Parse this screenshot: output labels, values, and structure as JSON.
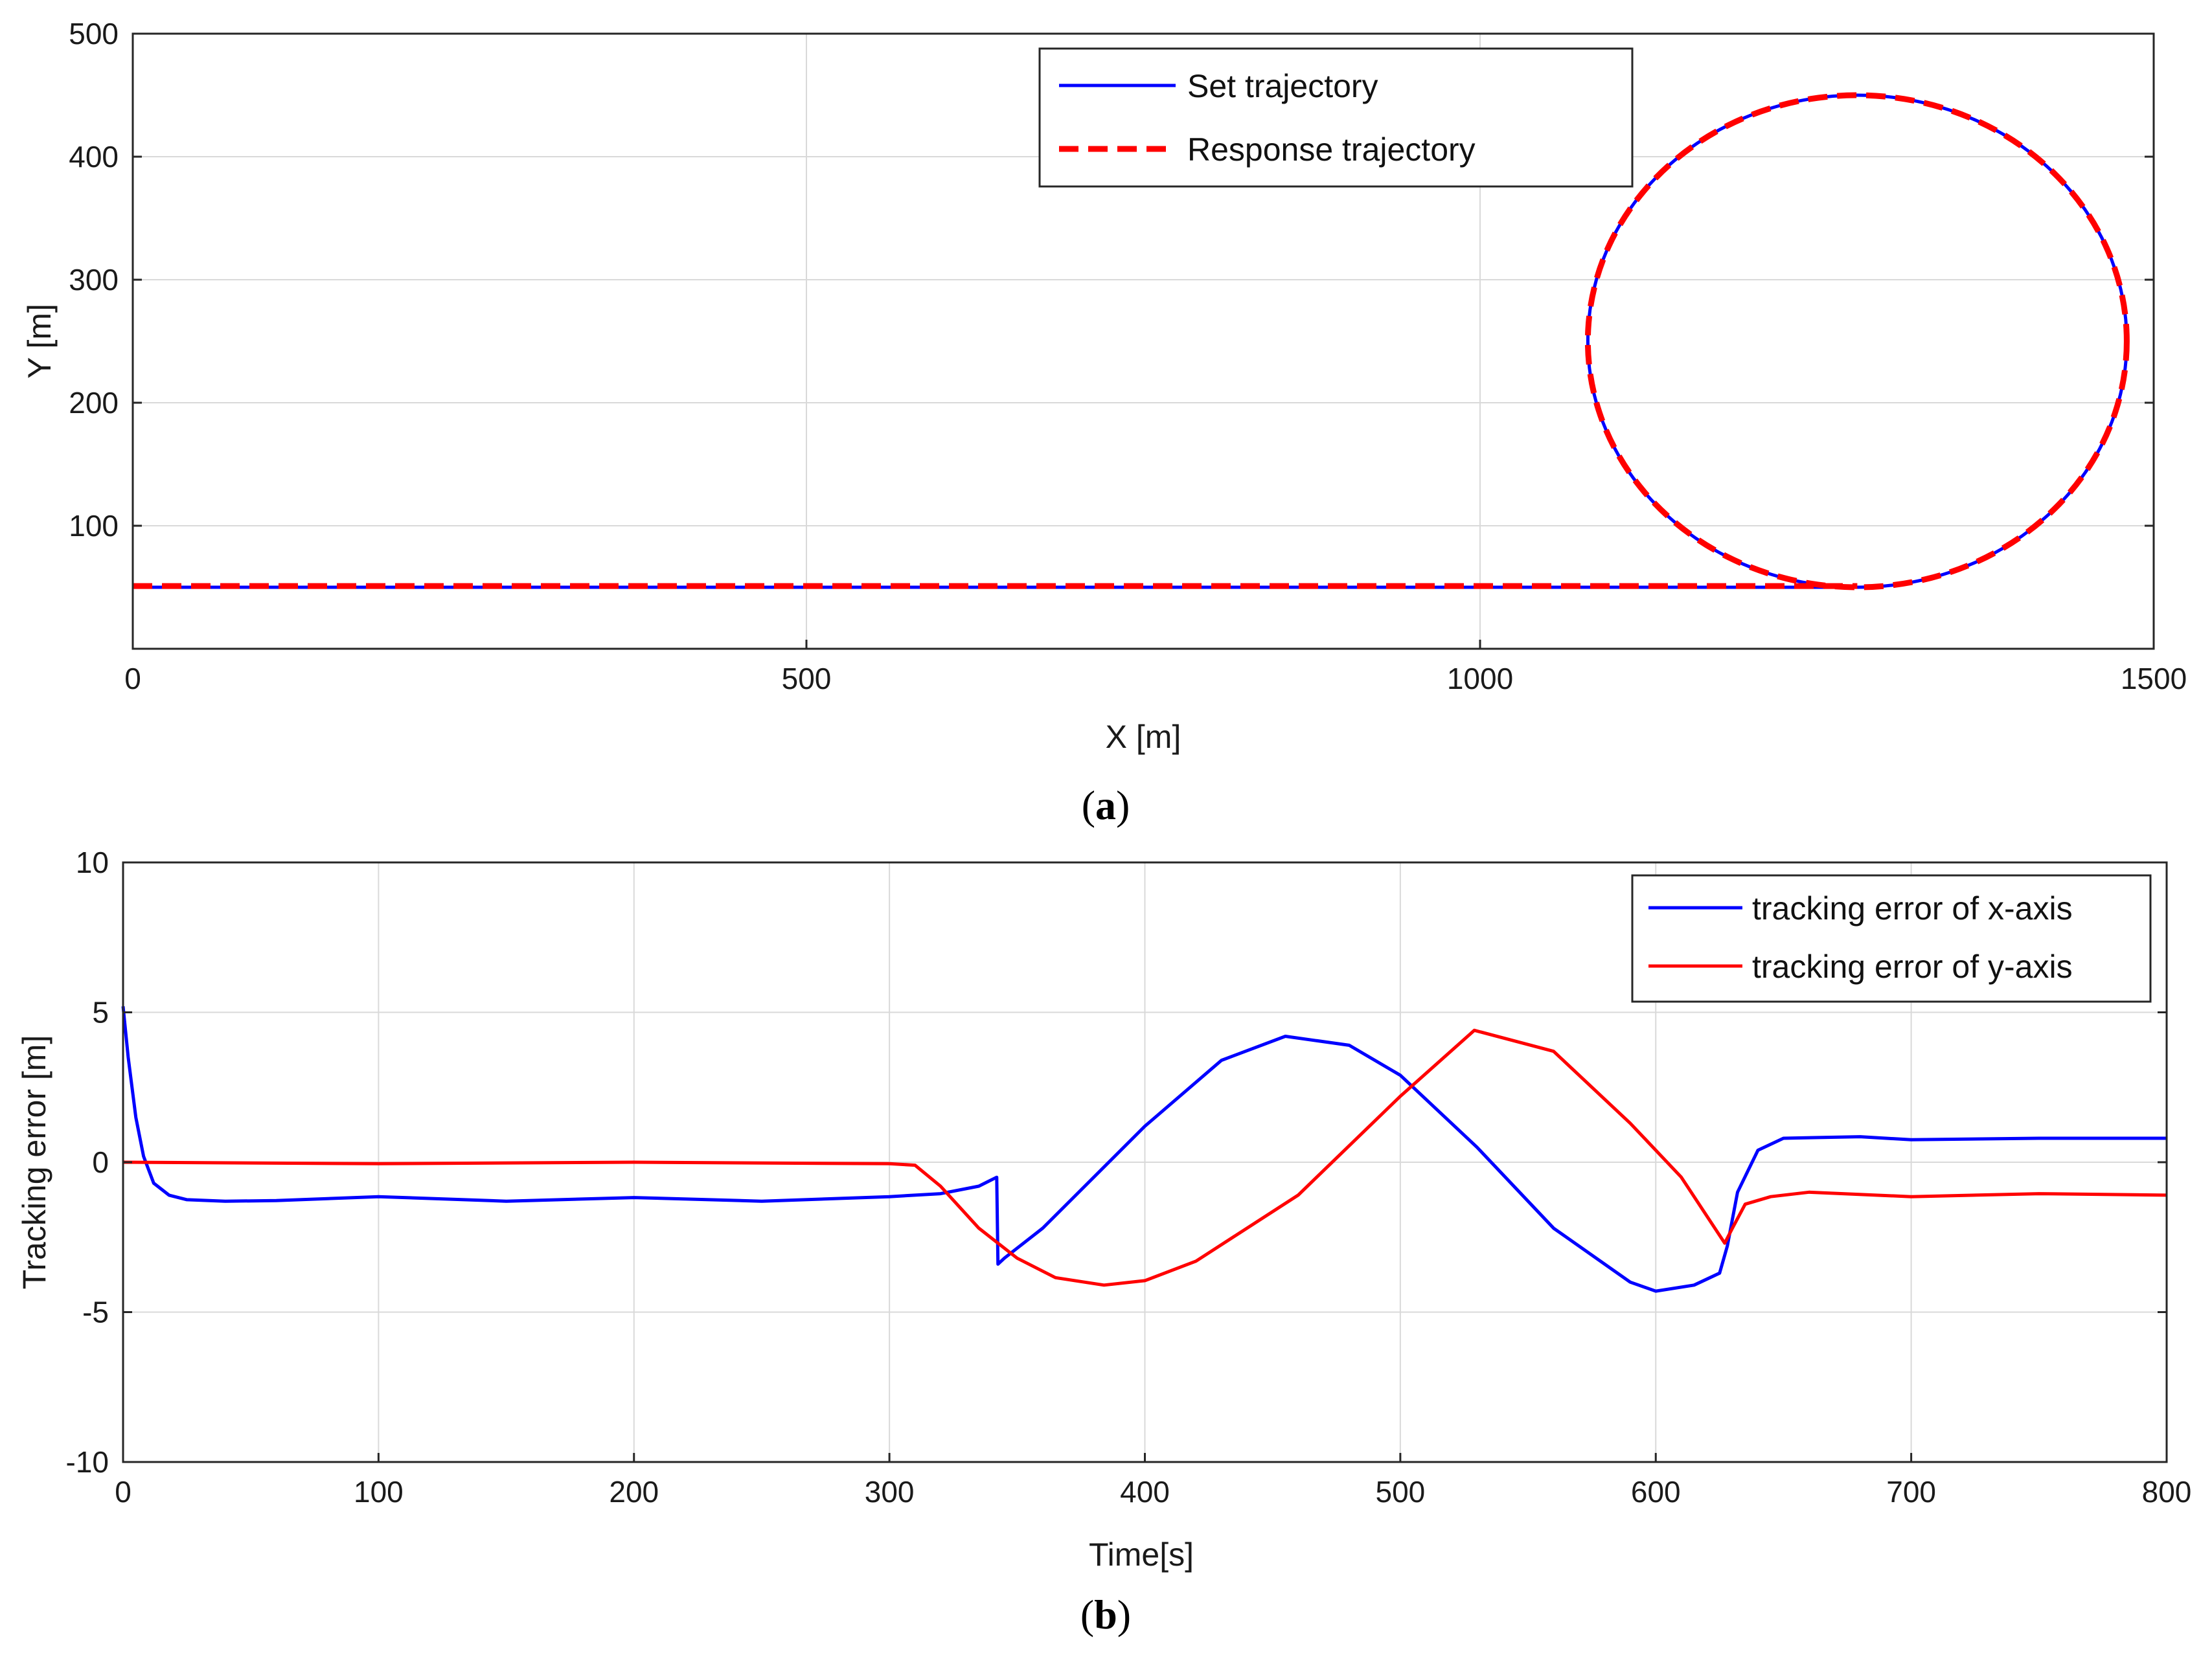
{
  "colors": {
    "blue": "#0000ff",
    "red": "#ff0000",
    "grid": "#d9d9d9",
    "axis": "#262626"
  },
  "chart_data": [
    {
      "id": "a",
      "type": "line",
      "caption": {
        "open": "(",
        "letter": "a",
        "close": ")"
      },
      "title": "",
      "xlabel": "X [m]",
      "ylabel": "Y [m]",
      "xlim": [
        0,
        1500
      ],
      "ylim": [
        0,
        500
      ],
      "xticks": [
        0,
        500,
        1000,
        1500
      ],
      "yticks": [
        100,
        200,
        300,
        400,
        500
      ],
      "grid": true,
      "legend_position": "top-right",
      "series": [
        {
          "name": "Set trajectory",
          "color": "#0000ff",
          "style": "solid",
          "segments": [
            {
              "kind": "line",
              "from": [
                0,
                50
              ],
              "to": [
                1280,
                50
              ]
            },
            {
              "kind": "circle",
              "center": [
                1280,
                250
              ],
              "radius": 200
            }
          ]
        },
        {
          "name": "Response trajectory",
          "color": "#ff0000",
          "style": "dashed",
          "segments": [
            {
              "kind": "line",
              "from": [
                0,
                51
              ],
              "to": [
                1280,
                51
              ]
            },
            {
              "kind": "circle",
              "center": [
                1280,
                250
              ],
              "radius": 200
            }
          ]
        }
      ]
    },
    {
      "id": "b",
      "type": "line",
      "caption": {
        "open": "(",
        "letter": "b",
        "close": ")"
      },
      "title": "",
      "xlabel": "Time[s]",
      "ylabel": "Tracking error [m]",
      "xlim": [
        0,
        800
      ],
      "ylim": [
        -10,
        10
      ],
      "xticks": [
        0,
        100,
        200,
        300,
        400,
        500,
        600,
        700,
        800
      ],
      "yticks": [
        -10,
        -5,
        0,
        5,
        10
      ],
      "grid": true,
      "legend_position": "top-right",
      "series": [
        {
          "name": "tracking error of x-axis",
          "color": "#0000ff",
          "x": [
            0,
            2,
            5,
            8,
            12,
            18,
            25,
            40,
            60,
            100,
            150,
            200,
            250,
            300,
            320,
            335,
            342,
            342.5,
            345,
            360,
            400,
            430,
            455,
            480,
            500,
            530,
            560,
            590,
            600,
            615,
            625,
            628,
            632,
            640,
            650,
            680,
            700,
            750,
            800
          ],
          "y": [
            5.2,
            3.5,
            1.5,
            0.2,
            -0.7,
            -1.1,
            -1.25,
            -1.3,
            -1.28,
            -1.15,
            -1.3,
            -1.18,
            -1.3,
            -1.15,
            -1.05,
            -0.8,
            -0.5,
            -3.4,
            -3.2,
            -2.2,
            1.2,
            3.4,
            4.2,
            3.9,
            2.9,
            0.5,
            -2.2,
            -4.0,
            -4.3,
            -4.1,
            -3.7,
            -2.8,
            -1.0,
            0.4,
            0.8,
            0.85,
            0.75,
            0.8,
            0.8
          ]
        },
        {
          "name": "tracking error of y-axis",
          "color": "#ff0000",
          "x": [
            0,
            100,
            200,
            300,
            310,
            320,
            335,
            350,
            365,
            384,
            400,
            420,
            460,
            500,
            529,
            560,
            590,
            610,
            627,
            630,
            635,
            645,
            660,
            700,
            750,
            800
          ],
          "y": [
            0,
            -0.05,
            0,
            -0.05,
            -0.1,
            -0.8,
            -2.2,
            -3.2,
            -3.85,
            -4.1,
            -3.95,
            -3.3,
            -1.1,
            2.2,
            4.4,
            3.7,
            1.3,
            -0.5,
            -2.7,
            -2.2,
            -1.4,
            -1.15,
            -1.0,
            -1.15,
            -1.05,
            -1.1
          ]
        }
      ]
    }
  ]
}
